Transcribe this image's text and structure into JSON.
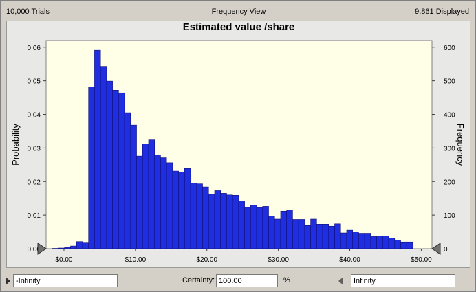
{
  "header": {
    "trials": "10,000 Trials",
    "view": "Frequency View",
    "displayed": "9,861 Displayed"
  },
  "chart_data": {
    "type": "bar",
    "title": "Estimated value /share",
    "ylabel_left": "Probability",
    "ylabel_right": "Frequency",
    "xlim": [
      -2.5,
      51.5
    ],
    "ylim_left": [
      0,
      0.062
    ],
    "ylim_right": [
      0,
      620
    ],
    "x_ticks": [
      "$0.00",
      "$10.00",
      "$20.00",
      "$30.00",
      "$40.00",
      "$50.00"
    ],
    "x_tick_values": [
      0,
      10,
      20,
      30,
      40,
      50
    ],
    "y_ticks_left": [
      "0.00",
      "0.01",
      "0.02",
      "0.03",
      "0.04",
      "0.05",
      "0.06"
    ],
    "y_ticks_right": [
      "0",
      "100",
      "200",
      "300",
      "400",
      "500",
      "600"
    ],
    "bin_start": -1.6,
    "bin_width": 0.84,
    "frequencies": [
      1,
      2,
      4,
      8,
      21,
      19,
      482,
      591,
      543,
      499,
      472,
      464,
      405,
      368,
      276,
      312,
      324,
      279,
      271,
      256,
      231,
      228,
      239,
      195,
      193,
      184,
      162,
      173,
      165,
      160,
      159,
      142,
      123,
      130,
      122,
      126,
      97,
      88,
      112,
      115,
      87,
      87,
      69,
      88,
      73,
      73,
      67,
      74,
      47,
      55,
      50,
      46,
      46,
      36,
      38,
      38,
      32,
      26,
      20,
      20
    ],
    "bar_color": "#1f2ee0",
    "plot_background": "#ffffe8",
    "left_limit_marker": "triangle",
    "right_limit_marker": "triangle"
  },
  "footer": {
    "left_value": "-Infinity",
    "certainty_label": "Certainty:",
    "certainty_value": "100.00",
    "percent_label": "%",
    "right_value": "Infinity"
  }
}
